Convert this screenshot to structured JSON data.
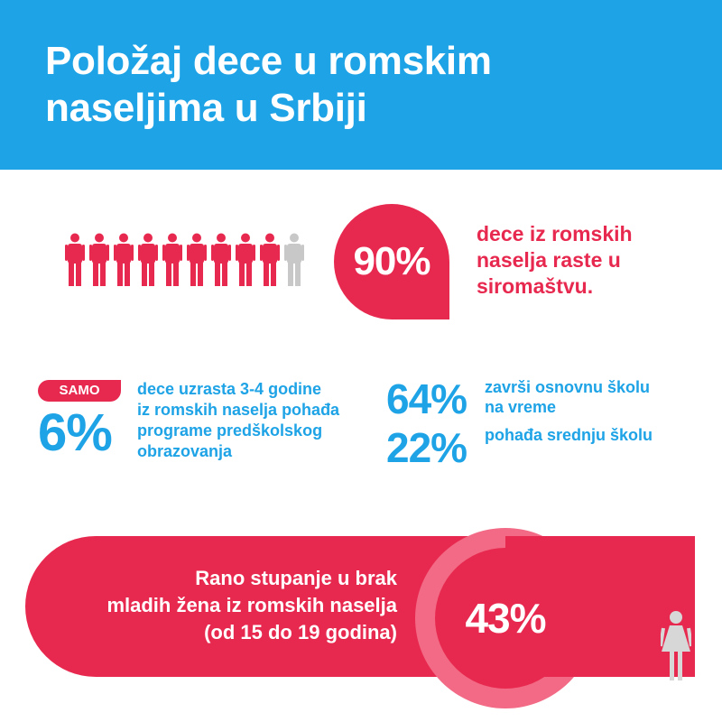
{
  "header": {
    "title_line1": "Položaj dece u romskim",
    "title_line2": "naseljima u Srbiji",
    "color": "#1ea3e6"
  },
  "poverty": {
    "figures_total": 10,
    "figures_highlighted": 9,
    "value": "90%",
    "text_line1": "dece iz romskih",
    "text_line2": "naselja raste u",
    "text_line3": "siromaštvu.",
    "color": "#e8294f"
  },
  "preschool": {
    "badge": "SAMO",
    "value": "6%",
    "text_line1": "dece uzrasta 3-4 godine",
    "text_line2": "iz romskih naselja pohađa",
    "text_line3": "programe predškolskog",
    "text_line4": "obrazovanja"
  },
  "primary": {
    "value": "64%",
    "text_line1": "završi osnovnu školu",
    "text_line2": "na vreme"
  },
  "secondary": {
    "value": "22%",
    "text_line1": "pohađa srednju školu"
  },
  "marriage": {
    "text_line1": "Rano stupanje u brak",
    "text_line2": "mladih žena iz romskih naselja",
    "text_line3": "(od 15 do 19 godina)",
    "value": "43%",
    "icon": "woman-icon"
  }
}
